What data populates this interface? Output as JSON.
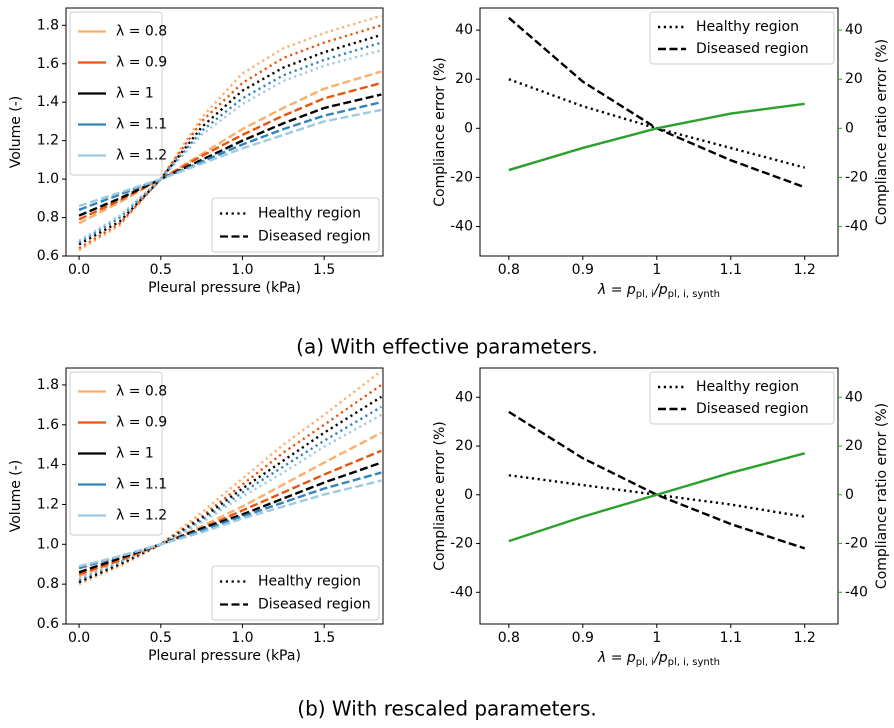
{
  "chart_data": [
    {
      "type": "line",
      "x": [
        0,
        0.25,
        0.5,
        0.75,
        1,
        1.25,
        1.5,
        1.85
      ],
      "xlim": [
        -0.08,
        1.86
      ],
      "ylim": [
        0.6,
        1.89
      ],
      "xticks": [
        {
          "value": 0,
          "label": "0.0"
        },
        0.5,
        {
          "value": 1,
          "label": "1.0"
        },
        1.5
      ],
      "yticks": [
        0.6,
        0.8,
        {
          "value": 1,
          "label": "1.0"
        },
        1.2,
        1.4,
        1.6,
        1.8
      ],
      "xlabel": "Pleural pressure (kPa)",
      "ylabel": "Volume (-)",
      "legend_loc": "upper left",
      "legend2_loc": "lower right",
      "legend": [
        {
          "name": "λ = 0.8",
          "color": "#fdae6b"
        },
        {
          "name": "λ = 0.9",
          "color": "#e6550d"
        },
        {
          "name": "λ = 1",
          "color": "#000000"
        },
        {
          "name": "λ = 1.1",
          "color": "#3182bd"
        },
        {
          "name": "λ = 1.2",
          "color": "#9ecae1"
        }
      ],
      "legend2": [
        {
          "name": "Healthy region",
          "linestyle": "dotted"
        },
        {
          "name": "Diseased region",
          "linestyle": "dashed"
        }
      ],
      "series": [
        {
          "color": "#fdae6b",
          "linestyle": "dotted",
          "values": [
            0.63,
            0.76,
            1.0,
            1.32,
            1.55,
            1.68,
            1.76,
            1.85
          ]
        },
        {
          "color": "#e6550d",
          "linestyle": "dotted",
          "values": [
            0.64,
            0.77,
            1.0,
            1.3,
            1.5,
            1.63,
            1.71,
            1.8
          ]
        },
        {
          "color": "#000000",
          "linestyle": "dotted",
          "values": [
            0.66,
            0.78,
            1.0,
            1.27,
            1.46,
            1.58,
            1.66,
            1.75
          ]
        },
        {
          "color": "#3182bd",
          "linestyle": "dotted",
          "values": [
            0.67,
            0.8,
            1.0,
            1.25,
            1.42,
            1.54,
            1.62,
            1.71
          ]
        },
        {
          "color": "#9ecae1",
          "linestyle": "dotted",
          "values": [
            0.68,
            0.81,
            1.0,
            1.23,
            1.39,
            1.51,
            1.59,
            1.67
          ]
        },
        {
          "color": "#fdae6b",
          "linestyle": "dashed",
          "values": [
            0.77,
            0.88,
            1.0,
            1.13,
            1.26,
            1.37,
            1.47,
            1.56
          ]
        },
        {
          "color": "#e6550d",
          "linestyle": "dashed",
          "values": [
            0.79,
            0.89,
            1.0,
            1.12,
            1.23,
            1.33,
            1.42,
            1.5
          ]
        },
        {
          "color": "#000000",
          "linestyle": "dashed",
          "values": [
            0.81,
            0.9,
            1.0,
            1.1,
            1.2,
            1.29,
            1.37,
            1.44
          ]
        },
        {
          "color": "#3182bd",
          "linestyle": "dashed",
          "values": [
            0.84,
            0.92,
            1.0,
            1.09,
            1.18,
            1.26,
            1.33,
            1.4
          ]
        },
        {
          "color": "#9ecae1",
          "linestyle": "dashed",
          "values": [
            0.86,
            0.93,
            1.0,
            1.08,
            1.16,
            1.23,
            1.3,
            1.36
          ]
        }
      ]
    },
    {
      "type": "line",
      "x": [
        0.8,
        0.9,
        1,
        1.1,
        1.2
      ],
      "xlim": [
        0.761,
        1.245
      ],
      "ylim": [
        -52,
        49
      ],
      "y2lim": [
        -52,
        49
      ],
      "xticks": [
        0.8,
        0.9,
        1,
        1.1,
        1.2
      ],
      "yticks": [
        -40,
        -20,
        0,
        20,
        40
      ],
      "y2ticks": [
        -40,
        -20,
        0,
        20,
        40
      ],
      "xlabel": {
        "lhs": "λ = p",
        "sub1": "pl, i",
        "mid": "/p",
        "sub2": "pl, i, synth"
      },
      "ylabel": "Compliance error (%)",
      "y2label": "Compliance ratio error (%)",
      "y2color": "#2ca02c",
      "legend_loc": "upper right",
      "series": [
        {
          "name": "Healthy region",
          "color": "#000000",
          "linestyle": "dotted",
          "values": [
            20,
            9,
            0,
            -8,
            -16
          ]
        },
        {
          "name": "Diseased region",
          "color": "#000000",
          "linestyle": "dashed",
          "values": [
            45,
            19,
            0,
            -13,
            -24
          ]
        },
        {
          "color": "#2ca02c",
          "linestyle": "solid",
          "axis": "y2",
          "values": [
            -17,
            -8,
            0,
            6,
            10
          ]
        }
      ]
    },
    {
      "type": "line",
      "x": [
        0,
        0.25,
        0.5,
        0.75,
        1,
        1.25,
        1.5,
        1.85
      ],
      "xlim": [
        -0.08,
        1.86
      ],
      "ylim": [
        0.6,
        1.885
      ],
      "xticks": [
        {
          "value": 0,
          "label": "0.0"
        },
        0.5,
        {
          "value": 1,
          "label": "1.0"
        },
        1.5
      ],
      "yticks": [
        0.6,
        0.8,
        {
          "value": 1,
          "label": "1.0"
        },
        1.2,
        1.4,
        1.6,
        1.8
      ],
      "xlabel": "Pleural pressure (kPa)",
      "ylabel": "Volume (-)",
      "legend_loc": "upper left",
      "legend2_loc": "lower right",
      "legend": [
        {
          "name": "λ = 0.8",
          "color": "#fdae6b"
        },
        {
          "name": "λ = 0.9",
          "color": "#e6550d"
        },
        {
          "name": "λ = 1",
          "color": "#000000"
        },
        {
          "name": "λ = 1.1",
          "color": "#3182bd"
        },
        {
          "name": "λ = 1.2",
          "color": "#9ecae1"
        }
      ],
      "legend2": [
        {
          "name": "Healthy region",
          "linestyle": "dotted"
        },
        {
          "name": "Diseased region",
          "linestyle": "dashed"
        }
      ],
      "series": [
        {
          "color": "#fdae6b",
          "linestyle": "dotted",
          "values": [
            0.8,
            0.89,
            1.0,
            1.16,
            1.33,
            1.5,
            1.65,
            1.87
          ]
        },
        {
          "color": "#e6550d",
          "linestyle": "dotted",
          "values": [
            0.81,
            0.9,
            1.0,
            1.14,
            1.3,
            1.46,
            1.6,
            1.8
          ]
        },
        {
          "color": "#000000",
          "linestyle": "dotted",
          "values": [
            0.81,
            0.9,
            1.0,
            1.13,
            1.28,
            1.42,
            1.56,
            1.74
          ]
        },
        {
          "color": "#3182bd",
          "linestyle": "dotted",
          "values": [
            0.82,
            0.91,
            1.0,
            1.12,
            1.26,
            1.39,
            1.52,
            1.69
          ]
        },
        {
          "color": "#9ecae1",
          "linestyle": "dotted",
          "values": [
            0.83,
            0.91,
            1.0,
            1.11,
            1.24,
            1.36,
            1.49,
            1.65
          ]
        },
        {
          "color": "#fdae6b",
          "linestyle": "dashed",
          "values": [
            0.84,
            0.92,
            1.0,
            1.09,
            1.19,
            1.3,
            1.41,
            1.56
          ]
        },
        {
          "color": "#e6550d",
          "linestyle": "dashed",
          "values": [
            0.85,
            0.92,
            1.0,
            1.08,
            1.17,
            1.26,
            1.35,
            1.47
          ]
        },
        {
          "color": "#000000",
          "linestyle": "dashed",
          "values": [
            0.86,
            0.93,
            1.0,
            1.08,
            1.15,
            1.23,
            1.31,
            1.41
          ]
        },
        {
          "color": "#3182bd",
          "linestyle": "dashed",
          "values": [
            0.88,
            0.94,
            1.0,
            1.07,
            1.14,
            1.21,
            1.28,
            1.36
          ]
        },
        {
          "color": "#9ecae1",
          "linestyle": "dashed",
          "values": [
            0.89,
            0.94,
            1.0,
            1.06,
            1.13,
            1.19,
            1.25,
            1.32
          ]
        }
      ]
    },
    {
      "type": "line",
      "x": [
        0.8,
        0.9,
        1,
        1.1,
        1.2
      ],
      "xlim": [
        0.761,
        1.245
      ],
      "ylim": [
        -53,
        52
      ],
      "y2lim": [
        -53,
        52
      ],
      "xticks": [
        0.8,
        0.9,
        1,
        1.1,
        1.2
      ],
      "yticks": [
        -40,
        -20,
        0,
        20,
        40
      ],
      "y2ticks": [
        -40,
        -20,
        0,
        20,
        40
      ],
      "xlabel": {
        "lhs": "λ = p",
        "sub1": "pl, i",
        "mid": "/p",
        "sub2": "pl, i, synth"
      },
      "ylabel": "Compliance error (%)",
      "y2label": "Compliance ratio error (%)",
      "y2color": "#2ca02c",
      "legend_loc": "upper right",
      "series": [
        {
          "name": "Healthy region",
          "color": "#000000",
          "linestyle": "dotted",
          "values": [
            8,
            4,
            0,
            -4,
            -9
          ]
        },
        {
          "name": "Diseased region",
          "color": "#000000",
          "linestyle": "dashed",
          "values": [
            34,
            15,
            0,
            -12,
            -22
          ]
        },
        {
          "color": "#2ca02c",
          "linestyle": "solid",
          "axis": "y2",
          "values": [
            -19,
            -9,
            0,
            9,
            17
          ]
        }
      ]
    }
  ],
  "captions": [
    "(a) With effective parameters.",
    "(b) With rescaled parameters."
  ]
}
